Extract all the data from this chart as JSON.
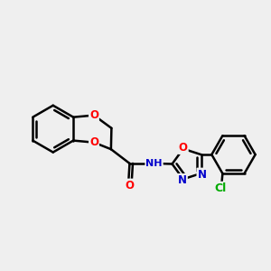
{
  "background_color": "#efefef",
  "bond_color": "#000000",
  "bond_width": 1.8,
  "atom_colors": {
    "O": "#ff0000",
    "N": "#0000cc",
    "Cl": "#00aa00",
    "C": "#000000",
    "H": "#888888"
  },
  "font_size": 8.5,
  "figsize": [
    3.0,
    3.0
  ],
  "dpi": 100
}
